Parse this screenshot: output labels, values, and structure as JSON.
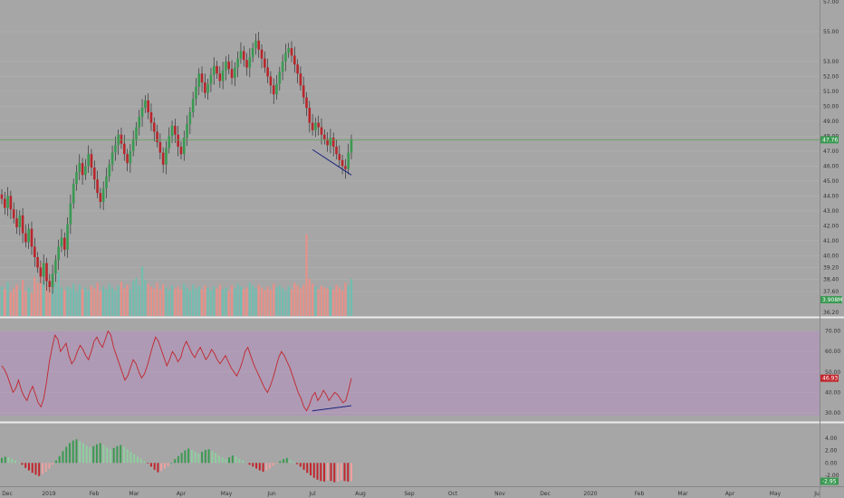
{
  "chart_data": [
    {
      "type": "candlestick",
      "title": "",
      "ylim": [
        36.2,
        57.0
      ],
      "y_ticks": [
        "57.00",
        "55.00",
        "53.00",
        "52.00",
        "51.00",
        "50.00",
        "49.00",
        "48.00",
        "47.00",
        "46.00",
        "45.00",
        "44.00",
        "43.00",
        "42.00",
        "41.00",
        "40.00",
        "39.20",
        "38.40",
        "37.60",
        "36.20"
      ],
      "last_price": "47.76",
      "last_price_value": 47.76,
      "volume_tag": "3.908M",
      "x_ticks": [
        "Dec",
        "2019",
        "Feb",
        "Mar",
        "Apr",
        "May",
        "Jun",
        "Jul",
        "Aug",
        "Sep",
        "Oct",
        "Nov",
        "Dec",
        "2020",
        "Feb",
        "Mar",
        "Apr",
        "May",
        "Ju"
      ],
      "ohlc_close": [
        43.8,
        43.2,
        44.0,
        43.1,
        42.5,
        41.9,
        42.7,
        41.5,
        40.9,
        41.8,
        40.6,
        39.9,
        39.2,
        38.6,
        39.5,
        38.3,
        37.9,
        38.8,
        39.7,
        40.6,
        41.2,
        40.4,
        42.1,
        43.5,
        44.8,
        45.6,
        46.2,
        45.4,
        46.0,
        46.8,
        45.9,
        45.1,
        44.2,
        43.6,
        44.5,
        45.3,
        46.1,
        46.9,
        47.4,
        48.1,
        47.5,
        46.8,
        46.2,
        47.0,
        47.8,
        48.6,
        49.3,
        49.9,
        50.4,
        49.6,
        48.9,
        48.3,
        47.6,
        46.9,
        46.1,
        47.2,
        48.0,
        48.7,
        48.1,
        47.3,
        46.8,
        47.9,
        48.8,
        49.6,
        50.5,
        51.3,
        52.2,
        51.6,
        50.9,
        51.5,
        52.1,
        52.7,
        52.2,
        51.7,
        52.4,
        53.0,
        52.5,
        51.9,
        52.6,
        53.2,
        53.7,
        53.1,
        52.6,
        53.3,
        53.9,
        54.4,
        53.8,
        53.2,
        52.6,
        52.0,
        51.4,
        50.8,
        51.5,
        52.3,
        53.0,
        53.6,
        53.9,
        53.4,
        52.8,
        52.2,
        51.4,
        50.6,
        49.9,
        48.9,
        48.4,
        48.9,
        48.6,
        48.1,
        47.8,
        47.4,
        47.9,
        47.3,
        46.8,
        46.4,
        46.0,
        45.8,
        46.9,
        47.76
      ],
      "volume": [
        3.1,
        2.8,
        3.6,
        2.5,
        2.9,
        3.3,
        2.7,
        3.8,
        2.6,
        3.0,
        2.4,
        4.1,
        3.5,
        5.6,
        3.7,
        3.2,
        3.9,
        2.8,
        3.4,
        4.6,
        3.0,
        2.7,
        3.1,
        2.9,
        3.4,
        2.6,
        3.3,
        2.8,
        3.0,
        2.7,
        3.2,
        2.9,
        3.5,
        2.6,
        3.1,
        2.8,
        3.4,
        3.0,
        2.7,
        3.2,
        3.6,
        2.9,
        3.3,
        2.8,
        3.7,
        4.0,
        3.2,
        5.2,
        3.8,
        3.4,
        3.1,
        2.9,
        3.5,
        2.8,
        3.3,
        3.0,
        2.7,
        3.2,
        2.9,
        3.1,
        2.8,
        3.4,
        3.0,
        2.7,
        3.3,
        2.9,
        3.1,
        2.8,
        3.2,
        3.0,
        2.7,
        3.1,
        2.9,
        3.3,
        2.8,
        3.0,
        2.6,
        3.2,
        2.9,
        3.4,
        3.1,
        2.8,
        3.0,
        3.5,
        3.2,
        2.9,
        3.3,
        3.0,
        2.7,
        3.1,
        2.8,
        3.4,
        3.0,
        3.2,
        2.9,
        2.7,
        3.1,
        2.8,
        3.5,
        3.2,
        2.9,
        3.3,
        8.6,
        3.9,
        3.4,
        3.1,
        2.8,
        3.2,
        3.0,
        2.9,
        3.1,
        2.8,
        3.3,
        3.0,
        2.7,
        3.5,
        3.2,
        3.9
      ]
    },
    {
      "type": "line",
      "title": "",
      "ylim": [
        26,
        76
      ],
      "y_ticks": [
        "70.00",
        "60.00",
        "50.00",
        "40.00",
        "30.00"
      ],
      "band": [
        30,
        70
      ],
      "last_value": "46.93",
      "last_value_num": 46.93,
      "values": [
        53,
        51,
        48,
        44,
        40,
        42,
        46,
        41,
        38,
        36,
        40,
        43,
        39,
        35,
        33,
        37,
        45,
        55,
        62,
        68,
        66,
        60,
        62,
        64,
        58,
        54,
        56,
        60,
        63,
        61,
        58,
        56,
        60,
        65,
        67,
        64,
        62,
        66,
        70,
        68,
        62,
        58,
        54,
        50,
        46,
        48,
        52,
        56,
        54,
        50,
        47,
        49,
        53,
        58,
        63,
        67,
        65,
        61,
        57,
        53,
        56,
        60,
        58,
        55,
        57,
        62,
        65,
        62,
        59,
        57,
        60,
        62,
        59,
        56,
        58,
        61,
        59,
        56,
        54,
        56,
        58,
        55,
        52,
        50,
        48,
        51,
        55,
        60,
        62,
        58,
        54,
        51,
        48,
        45,
        42,
        40,
        43,
        47,
        52,
        57,
        60,
        58,
        55,
        52,
        48,
        44,
        40,
        37,
        33,
        31,
        34,
        38,
        40,
        36,
        38,
        41,
        39,
        36,
        38,
        40,
        39,
        37,
        35,
        36,
        41,
        46.93
      ]
    },
    {
      "type": "bar",
      "title": "",
      "ylim": [
        -3.6,
        6.3
      ],
      "y_ticks": [
        "4.00",
        "2.00",
        "0.00",
        "-2.00"
      ],
      "last_value": "-2.95",
      "last_value_num": -2.95,
      "values": [
        0.8,
        1.0,
        0.9,
        0.7,
        0.4,
        0.1,
        -0.3,
        -0.8,
        -1.2,
        -1.6,
        -1.9,
        -2.1,
        -1.8,
        -1.4,
        -0.9,
        -0.3,
        0.4,
        1.1,
        1.9,
        2.6,
        3.2,
        3.6,
        3.8,
        3.5,
        3.2,
        2.8,
        2.5,
        2.7,
        3.0,
        3.2,
        2.9,
        2.5,
        2.2,
        2.4,
        2.7,
        2.9,
        2.6,
        2.2,
        1.8,
        1.4,
        1.0,
        0.7,
        0.3,
        -0.1,
        -0.6,
        -1.1,
        -1.5,
        -1.3,
        -0.9,
        -0.5,
        0.0,
        0.6,
        1.1,
        1.6,
        2.0,
        2.3,
        2.1,
        1.8,
        1.5,
        1.8,
        2.1,
        2.2,
        1.9,
        1.6,
        1.2,
        0.9,
        0.6,
        0.9,
        1.2,
        1.0,
        0.7,
        0.4,
        0.1,
        -0.3,
        -0.6,
        -0.9,
        -1.2,
        -1.4,
        -1.2,
        -0.9,
        -0.5,
        -0.1,
        0.3,
        0.6,
        0.8,
        0.5,
        0.2,
        -0.2,
        -0.6,
        -1.1,
        -1.6,
        -2.0,
        -2.4,
        -2.7,
        -2.9,
        -3.0,
        -2.8,
        -2.9,
        -3.1,
        -3.0,
        -2.8,
        -2.9,
        -3.0,
        -2.95
      ]
    }
  ]
}
